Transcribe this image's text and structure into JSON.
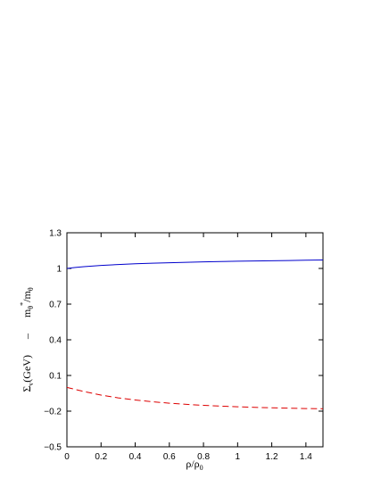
{
  "chart_data": {
    "type": "line",
    "title": "",
    "xlabel": {
      "base": "ρ/ρ",
      "sub": "0"
    },
    "ylabel": {
      "left_base": "Σ",
      "left_sub": "v",
      "left_rest": "(GeV)",
      "dash": "–",
      "right_base": "m",
      "right_sub1": "θ",
      "right_sup": "*",
      "right_slash": "/m",
      "right_sub2": "θ"
    },
    "xlim": [
      0,
      1.5
    ],
    "ylim": [
      -0.5,
      1.3
    ],
    "xticks": [
      {
        "value": 0,
        "label": "0"
      },
      {
        "value": 0.2,
        "label": "0.2"
      },
      {
        "value": 0.4,
        "label": "0.4"
      },
      {
        "value": 0.6,
        "label": "0.6"
      },
      {
        "value": 0.8,
        "label": "0.8"
      },
      {
        "value": 1.0,
        "label": "1"
      },
      {
        "value": 1.2,
        "label": "1.2"
      },
      {
        "value": 1.4,
        "label": "1.4"
      }
    ],
    "yticks": [
      {
        "value": -0.5,
        "label": "−0.5"
      },
      {
        "value": -0.2,
        "label": "−0.2"
      },
      {
        "value": 0.1,
        "label": "0.1"
      },
      {
        "value": 0.4,
        "label": "0.4"
      },
      {
        "value": 0.7,
        "label": "0.7"
      },
      {
        "value": 1.0,
        "label": "1"
      },
      {
        "value": 1.3,
        "label": "1.3"
      }
    ],
    "grid": false,
    "legend": "none",
    "series": [
      {
        "color": "#0000cc",
        "dash": "solid",
        "x": [
          0,
          0.05,
          0.1,
          0.2,
          0.3,
          0.4,
          0.5,
          0.6,
          0.7,
          0.8,
          0.9,
          1.0,
          1.1,
          1.2,
          1.3,
          1.4,
          1.5
        ],
        "y": [
          1.0,
          1.008,
          1.015,
          1.025,
          1.033,
          1.039,
          1.044,
          1.048,
          1.052,
          1.055,
          1.058,
          1.061,
          1.063,
          1.065,
          1.067,
          1.069,
          1.071
        ]
      },
      {
        "color": "#dd0000",
        "dash": "dashed",
        "x": [
          0,
          0.05,
          0.1,
          0.2,
          0.3,
          0.4,
          0.5,
          0.6,
          0.7,
          0.8,
          0.9,
          1.0,
          1.1,
          1.2,
          1.3,
          1.4,
          1.5
        ],
        "y": [
          0.0,
          -0.018,
          -0.035,
          -0.065,
          -0.088,
          -0.106,
          -0.121,
          -0.133,
          -0.143,
          -0.151,
          -0.158,
          -0.163,
          -0.168,
          -0.172,
          -0.175,
          -0.178,
          -0.18
        ]
      }
    ]
  }
}
